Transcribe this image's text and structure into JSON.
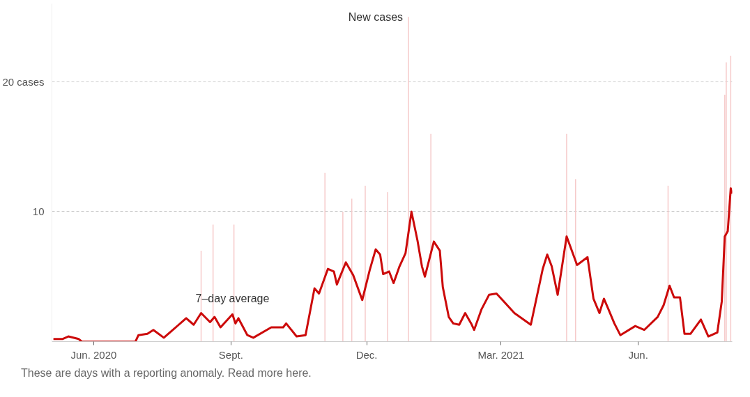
{
  "chart_data": {
    "type": "bar",
    "xlim": [
      "2020-05-04",
      "2021-08-03"
    ],
    "ylim": [
      0,
      26
    ],
    "xticks": [
      {
        "value": "2020-06-01",
        "label": "Jun. 2020"
      },
      {
        "value": "2020-09-01",
        "label": "Sept."
      },
      {
        "value": "2020-12-01",
        "label": "Dec."
      },
      {
        "value": "2021-03-01",
        "label": "Mar. 2021"
      },
      {
        "value": "2021-06-01",
        "label": "Jun."
      }
    ],
    "yticks": [
      {
        "value": 10,
        "label": "10"
      },
      {
        "value": 20,
        "label": "20 cases"
      }
    ],
    "grid": "y",
    "series": [
      {
        "color": "#f6caca",
        "x": [
          "2020-08-12",
          "2020-08-20",
          "2020-09-03",
          "2020-11-03",
          "2020-11-15",
          "2020-11-21",
          "2020-11-30",
          "2020-12-15",
          "2020-12-29",
          "2021-01-13",
          "2021-04-14",
          "2021-04-20",
          "2021-06-21",
          "2021-07-29",
          "2021-07-30",
          "2021-08-02"
        ],
        "values": [
          7,
          9,
          9,
          13,
          10,
          11,
          12,
          11.5,
          25,
          16,
          16,
          12.5,
          12,
          19,
          21.5,
          22
        ]
      },
      {
        "type": "line",
        "color": "#cc0a0a",
        "x": [
          "2020-05-05",
          "2020-05-11",
          "2020-05-15",
          "2020-05-22",
          "2020-05-24",
          "2020-06-29",
          "2020-07-01",
          "2020-07-07",
          "2020-07-11",
          "2020-07-18",
          "2020-07-25",
          "2020-07-31",
          "2020-08-02",
          "2020-08-07",
          "2020-08-12",
          "2020-08-18",
          "2020-08-21",
          "2020-08-25",
          "2020-09-02",
          "2020-09-04",
          "2020-09-06",
          "2020-09-12",
          "2020-09-16",
          "2020-09-28",
          "2020-10-06",
          "2020-10-08",
          "2020-10-15",
          "2020-10-21",
          "2020-10-27",
          "2020-10-30",
          "2020-11-05",
          "2020-11-09",
          "2020-11-11",
          "2020-11-17",
          "2020-11-22",
          "2020-11-28",
          "2020-12-03",
          "2020-12-07",
          "2020-12-10",
          "2020-12-12",
          "2020-12-16",
          "2020-12-19",
          "2020-12-23",
          "2020-12-27",
          "2020-12-31",
          "2021-01-04",
          "2021-01-07",
          "2021-01-09",
          "2021-01-15",
          "2021-01-19",
          "2021-01-21",
          "2021-01-25",
          "2021-01-28",
          "2021-02-01",
          "2021-02-05",
          "2021-02-09",
          "2021-02-11",
          "2021-02-16",
          "2021-02-21",
          "2021-02-26",
          "2021-03-02",
          "2021-03-10",
          "2021-03-21",
          "2021-03-29",
          "2021-04-01",
          "2021-04-04",
          "2021-04-08",
          "2021-04-14",
          "2021-04-21",
          "2021-04-28",
          "2021-05-02",
          "2021-05-06",
          "2021-05-09",
          "2021-05-12",
          "2021-05-16",
          "2021-05-20",
          "2021-05-30",
          "2021-06-05",
          "2021-06-14",
          "2021-06-18",
          "2021-06-22",
          "2021-06-25",
          "2021-06-29",
          "2021-07-02",
          "2021-07-06",
          "2021-07-13",
          "2021-07-18",
          "2021-07-24",
          "2021-07-27",
          "2021-07-29",
          "2021-07-31",
          "2021-08-02",
          "2021-08-03"
        ],
        "values": [
          0.2,
          0.2,
          0.4,
          0.2,
          0,
          0,
          0.5,
          0.6,
          0.9,
          0.3,
          1.0,
          1.6,
          1.8,
          1.3,
          2.2,
          1.5,
          1.9,
          1.1,
          2.1,
          1.4,
          1.8,
          0.5,
          0.3,
          1.1,
          1.1,
          1.4,
          0.4,
          0.5,
          4.1,
          3.7,
          5.6,
          5.4,
          4.4,
          6.1,
          5.1,
          3.2,
          5.5,
          7.1,
          6.7,
          5.2,
          5.4,
          4.5,
          5.8,
          6.8,
          10,
          7.8,
          5.8,
          5.0,
          7.7,
          7.0,
          4.2,
          1.9,
          1.4,
          1.3,
          2.2,
          1.4,
          0.9,
          2.5,
          3.6,
          3.7,
          3.2,
          2.2,
          1.3,
          5.6,
          6.7,
          5.8,
          3.6,
          8.1,
          5.9,
          6.5,
          3.3,
          2.2,
          3.3,
          2.5,
          1.4,
          0.5,
          1.2,
          0.9,
          1.9,
          2.8,
          4.3,
          3.4,
          3.4,
          0.6,
          0.6,
          1.7,
          0.4,
          0.7,
          3.1,
          8.1,
          8.5,
          11.8,
          11.4
        ]
      }
    ],
    "annotations": [
      {
        "text": "New cases",
        "x": "2020-12-29",
        "y": 25
      },
      {
        "text": "7–day average",
        "x": "2020-09-02",
        "y": 2.1
      },
      "These are days with a reporting anomaly. Read more here."
    ]
  }
}
